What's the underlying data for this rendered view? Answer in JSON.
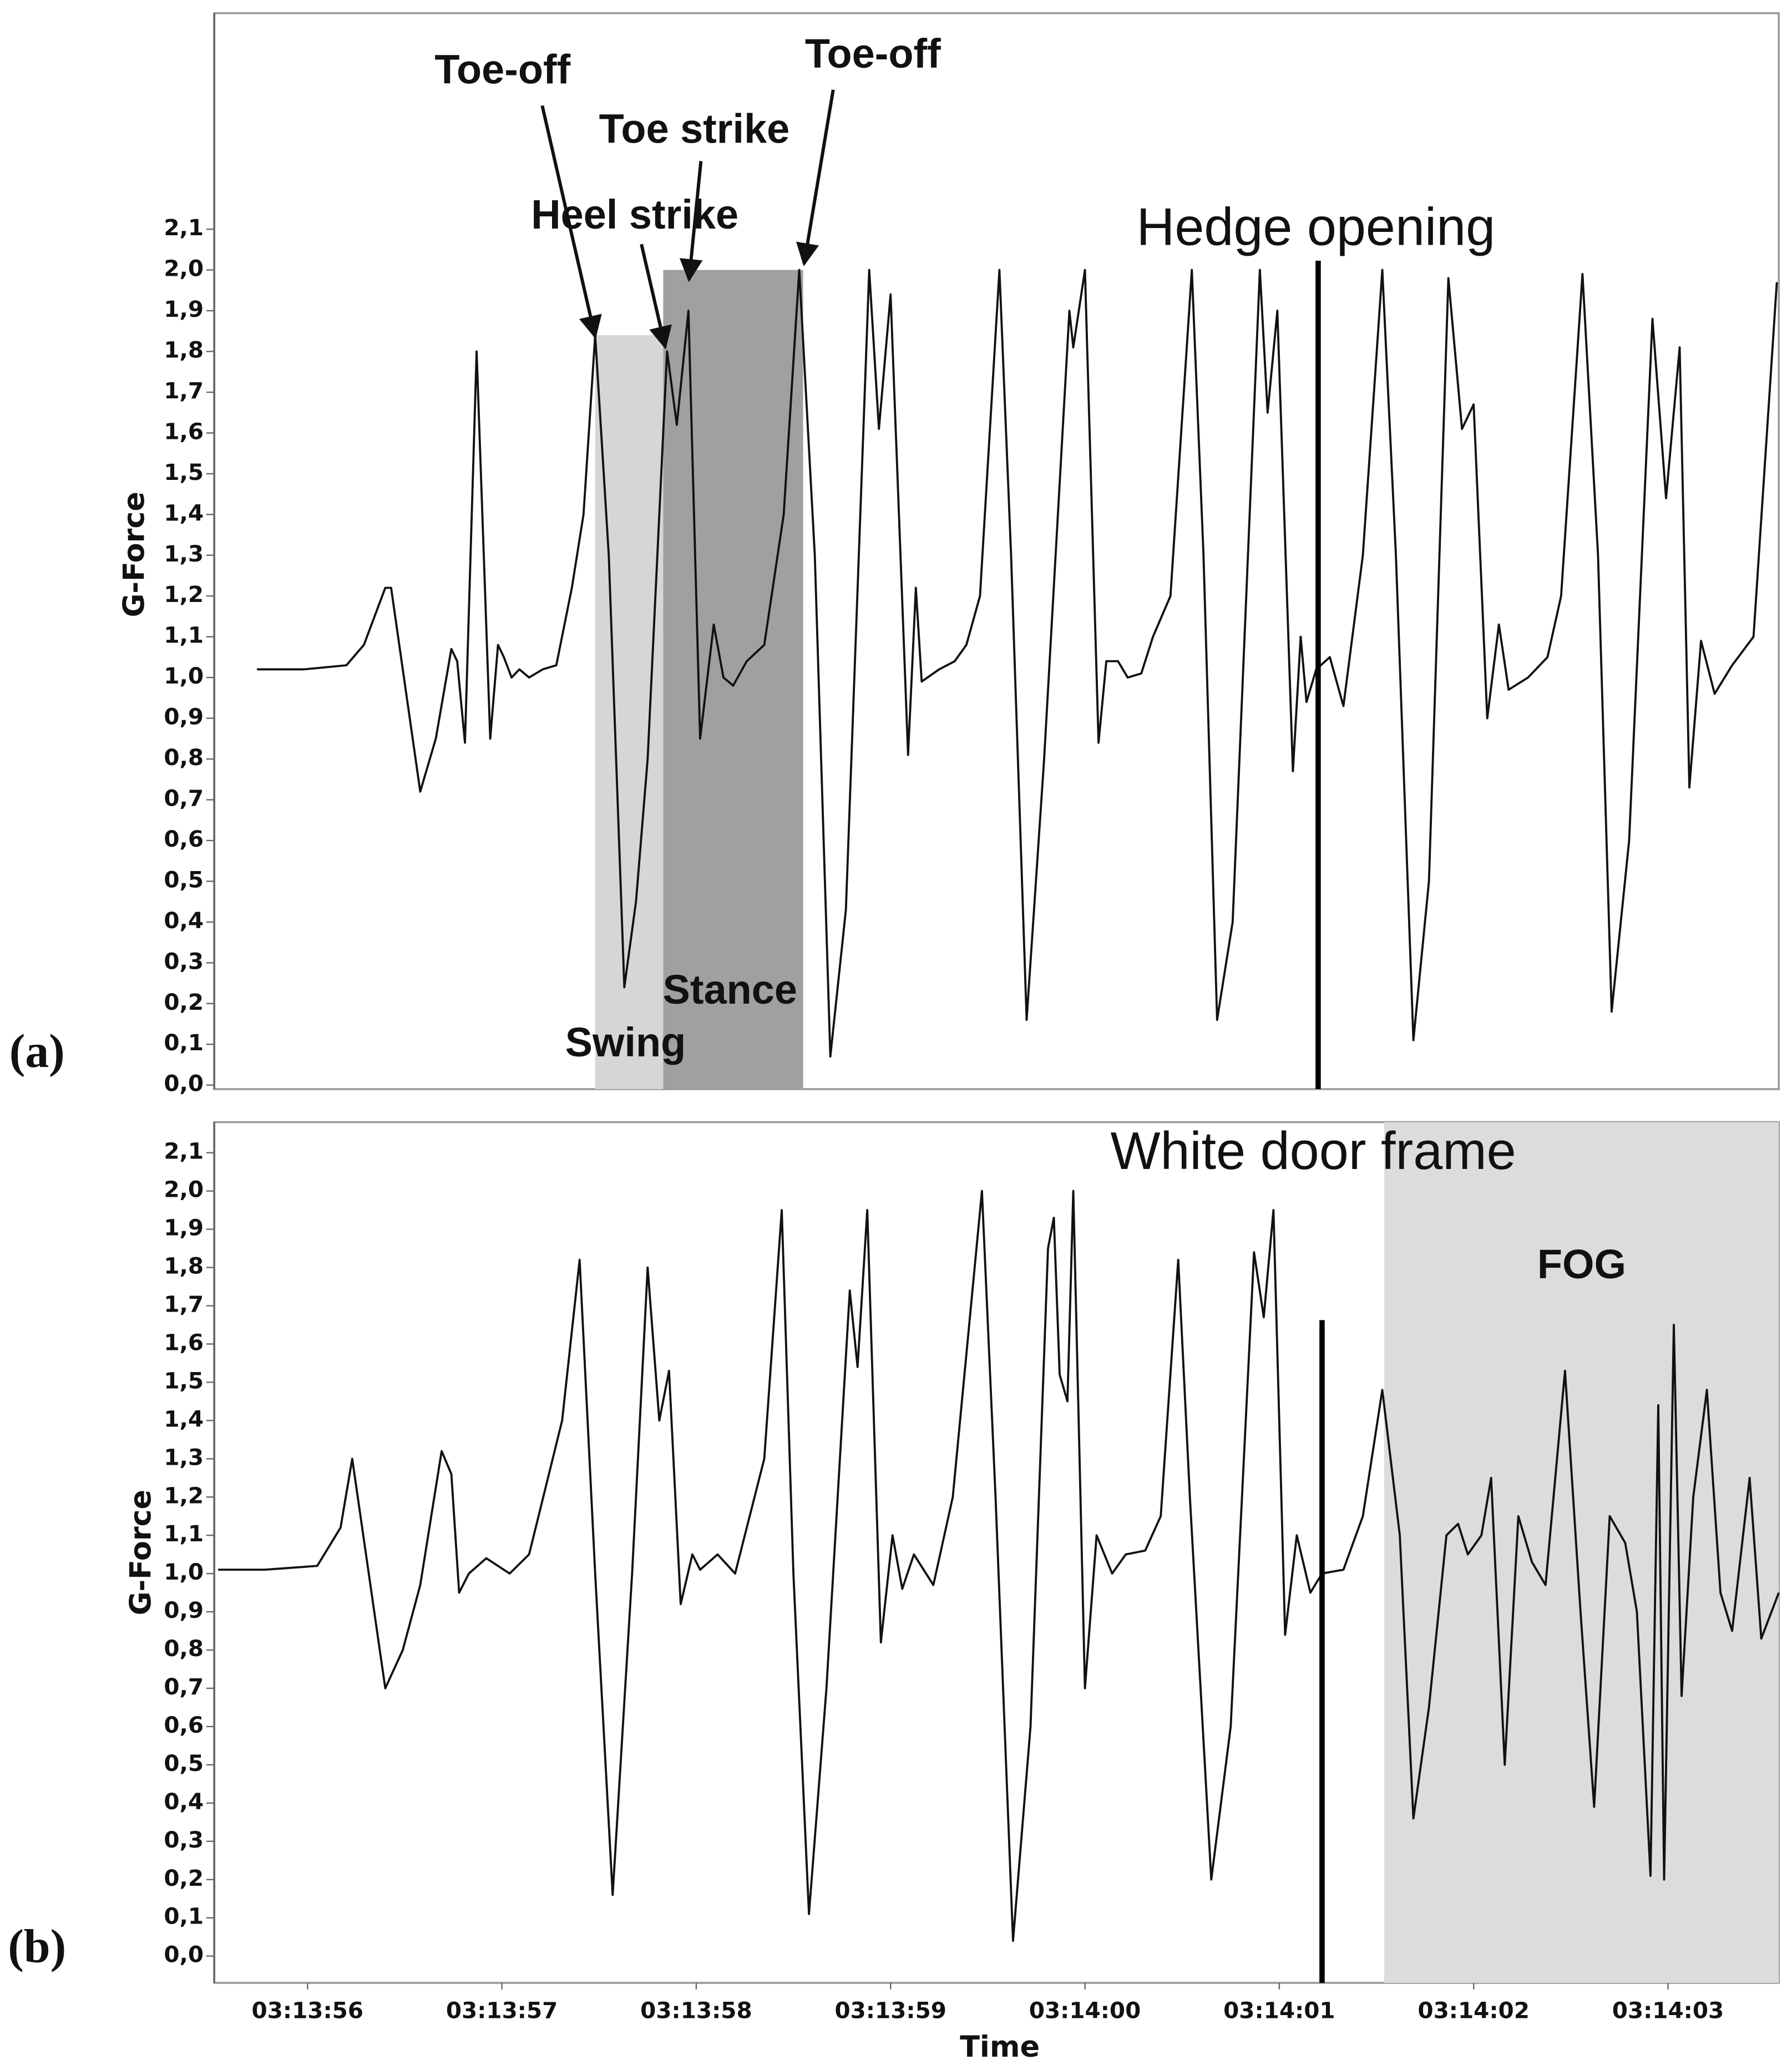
{
  "chart_data": [
    {
      "type": "line",
      "panel": "(a)",
      "ylabel": "G-Force",
      "xlim": [
        11635.52,
        11643.57
      ],
      "ylim": [
        -0.01,
        2.63
      ],
      "yticks": [
        {
          "value": 0,
          "label": "0,0"
        },
        {
          "value": 0.1,
          "label": "0,1"
        },
        {
          "value": 0.2,
          "label": "0,2"
        },
        {
          "value": 0.3,
          "label": "0,3"
        },
        {
          "value": 0.4,
          "label": "0,4"
        },
        {
          "value": 0.5,
          "label": "0,5"
        },
        {
          "value": 0.6,
          "label": "0,6"
        },
        {
          "value": 0.7,
          "label": "0,7"
        },
        {
          "value": 0.8,
          "label": "0,8"
        },
        {
          "value": 0.9,
          "label": "0,9"
        },
        {
          "value": 1,
          "label": "1,0"
        },
        {
          "value": 1.1,
          "label": "1,1"
        },
        {
          "value": 1.2,
          "label": "1,2"
        },
        {
          "value": 1.3,
          "label": "1,3"
        },
        {
          "value": 1.4,
          "label": "1,4"
        },
        {
          "value": 1.5,
          "label": "1,5"
        },
        {
          "value": 1.6,
          "label": "1,6"
        },
        {
          "value": 1.7,
          "label": "1,7"
        },
        {
          "value": 1.8,
          "label": "1,8"
        },
        {
          "value": 1.9,
          "label": "1,9"
        },
        {
          "value": 2,
          "label": "2,0"
        },
        {
          "value": 2.1,
          "label": "2,1"
        }
      ],
      "spans": [
        {
          "label": "Swing",
          "x": [
            11637.48,
            11637.83
          ],
          "ytop": 1.84,
          "color": "#d6d6d6"
        },
        {
          "label": "Stance",
          "x": [
            11637.83,
            11638.55
          ],
          "ytop": 2.0,
          "color": "#a0a0a0"
        }
      ],
      "vlines": [
        {
          "x": 11641.2,
          "label": "Hedge opening"
        }
      ],
      "annotations": [
        {
          "text": "Toe-off"
        },
        {
          "text": "Toe strike"
        },
        {
          "text": "Heel strike"
        },
        {
          "text": "Toe-off"
        }
      ],
      "series": [
        {
          "color": "#111111",
          "x": [
            11635.74,
            11635.98,
            11636.2,
            11636.29,
            11636.4,
            11636.43,
            11636.58,
            11636.66,
            11636.74,
            11636.77,
            11636.81,
            11636.87,
            11636.94,
            11636.98,
            11637.01,
            11637.05,
            11637.09,
            11637.14,
            11637.21,
            11637.28,
            11637.36,
            11637.42,
            11637.48,
            11637.55,
            11637.63,
            11637.69,
            11637.75,
            11637.85,
            11637.9,
            11637.96,
            11638.02,
            11638.09,
            11638.14,
            11638.19,
            11638.26,
            11638.35,
            11638.45,
            11638.53,
            11638.61,
            11638.69,
            11638.77,
            11638.89,
            11638.94,
            11639.0,
            11639.09,
            11639.13,
            11639.16,
            11639.25,
            11639.33,
            11639.39,
            11639.46,
            11639.56,
            11639.62,
            11639.7,
            11639.79,
            11639.92,
            11639.94,
            11640.0,
            11640.07,
            11640.11,
            11640.17,
            11640.22,
            11640.29,
            11640.35,
            11640.44,
            11640.55,
            11640.61,
            11640.68,
            11640.76,
            11640.9,
            11640.94,
            11640.99,
            11641.07,
            11641.11,
            11641.14,
            11641.19,
            11641.26,
            11641.33,
            11641.43,
            11641.53,
            11641.6,
            11641.69,
            11641.77,
            11641.87,
            11641.94,
            11642.0,
            11642.07,
            11642.13,
            11642.18,
            11642.28,
            11642.38,
            11642.45,
            11642.56,
            11642.64,
            11642.71,
            11642.8,
            11642.92,
            11642.99,
            11643.06,
            11643.11,
            11643.17,
            11643.24,
            11643.33,
            11643.44,
            11643.56
          ],
          "values": [
            1.02,
            1.02,
            1.03,
            1.08,
            1.22,
            1.22,
            0.72,
            0.85,
            1.07,
            1.04,
            0.84,
            1.8,
            0.85,
            1.08,
            1.05,
            1.0,
            1.02,
            1.0,
            1.02,
            1.03,
            1.22,
            1.4,
            1.84,
            1.3,
            0.24,
            0.45,
            0.8,
            1.8,
            1.62,
            1.9,
            0.85,
            1.13,
            1.0,
            0.98,
            1.04,
            1.08,
            1.4,
            2.0,
            1.3,
            0.07,
            0.43,
            2.0,
            1.61,
            1.94,
            0.81,
            1.22,
            0.99,
            1.02,
            1.04,
            1.08,
            1.2,
            2.0,
            1.3,
            0.16,
            0.8,
            1.9,
            1.81,
            2.0,
            0.84,
            1.04,
            1.04,
            1.0,
            1.01,
            1.1,
            1.2,
            2.0,
            1.3,
            0.16,
            0.4,
            2.0,
            1.65,
            1.9,
            0.77,
            1.1,
            0.94,
            1.02,
            1.05,
            0.93,
            1.3,
            2.0,
            1.3,
            0.11,
            0.5,
            1.98,
            1.61,
            1.67,
            0.9,
            1.13,
            0.97,
            1.0,
            1.05,
            1.2,
            1.99,
            1.3,
            0.18,
            0.6,
            1.88,
            1.44,
            1.81,
            0.73,
            1.09,
            0.96,
            1.03,
            1.1,
            1.97
          ]
        }
      ]
    },
    {
      "type": "line",
      "panel": "(b)",
      "ylabel": "G-Force",
      "xlabel": "Time",
      "xlim": [
        11635.52,
        11643.57
      ],
      "ylim": [
        -0.07,
        2.18
      ],
      "xticks": [
        {
          "value": 11636,
          "label": "03:13:56"
        },
        {
          "value": 11637,
          "label": "03:13:57"
        },
        {
          "value": 11638,
          "label": "03:13:58"
        },
        {
          "value": 11639,
          "label": "03:13:59"
        },
        {
          "value": 11640,
          "label": "03:14:00"
        },
        {
          "value": 11641,
          "label": "03:14:01"
        },
        {
          "value": 11642,
          "label": "03:14:02"
        },
        {
          "value": 11643,
          "label": "03:14:03"
        }
      ],
      "yticks": [
        {
          "value": 0,
          "label": "0,0"
        },
        {
          "value": 0.1,
          "label": "0,1"
        },
        {
          "value": 0.2,
          "label": "0,2"
        },
        {
          "value": 0.3,
          "label": "0,3"
        },
        {
          "value": 0.4,
          "label": "0,4"
        },
        {
          "value": 0.5,
          "label": "0,5"
        },
        {
          "value": 0.6,
          "label": "0,6"
        },
        {
          "value": 0.7,
          "label": "0,7"
        },
        {
          "value": 0.8,
          "label": "0,8"
        },
        {
          "value": 0.9,
          "label": "0,9"
        },
        {
          "value": 1,
          "label": "1,0"
        },
        {
          "value": 1.1,
          "label": "1,1"
        },
        {
          "value": 1.2,
          "label": "1,2"
        },
        {
          "value": 1.3,
          "label": "1,3"
        },
        {
          "value": 1.4,
          "label": "1,4"
        },
        {
          "value": 1.5,
          "label": "1,5"
        },
        {
          "value": 1.6,
          "label": "1,6"
        },
        {
          "value": 1.7,
          "label": "1,7"
        },
        {
          "value": 1.8,
          "label": "1,8"
        },
        {
          "value": 1.9,
          "label": "1,9"
        },
        {
          "value": 2,
          "label": "2,0"
        },
        {
          "value": 2.1,
          "label": "2,1"
        }
      ],
      "spans": [
        {
          "label": "FOG",
          "x": [
            11641.54,
            11643.57
          ],
          "ytop": 2.18,
          "color": "#dcdcdc"
        }
      ],
      "vlines": [
        {
          "x": 11641.22,
          "label": "White door frame"
        }
      ],
      "series": [
        {
          "color": "#111111",
          "x": [
            11635.54,
            11635.78,
            11636.05,
            11636.17,
            11636.23,
            11636.4,
            11636.49,
            11636.58,
            11636.69,
            11636.74,
            11636.78,
            11636.83,
            11636.92,
            11637.04,
            11637.14,
            11637.31,
            11637.4,
            11637.48,
            11637.57,
            11637.67,
            11637.75,
            11637.81,
            11637.86,
            11637.92,
            11637.98,
            11638.02,
            11638.11,
            11638.2,
            11638.35,
            11638.44,
            11638.5,
            11638.58,
            11638.67,
            11638.79,
            11638.83,
            11638.88,
            11638.95,
            11639.01,
            11639.06,
            11639.12,
            11639.22,
            11639.32,
            11639.47,
            11639.54,
            11639.63,
            11639.72,
            11639.81,
            11639.84,
            11639.87,
            11639.91,
            11639.94,
            11640.0,
            11640.06,
            11640.14,
            11640.21,
            11640.31,
            11640.39,
            11640.48,
            11640.54,
            11640.65,
            11640.75,
            11640.87,
            11640.92,
            11640.97,
            11641.03,
            11641.09,
            11641.16,
            11641.22,
            11641.33,
            11641.43,
            11641.53,
            11641.62,
            11641.69,
            11641.77,
            11641.86,
            11641.92,
            11641.97,
            11642.04,
            11642.09,
            11642.16,
            11642.23,
            11642.3,
            11642.37,
            11642.47,
            11642.55,
            11642.62,
            11642.7,
            11642.78,
            11642.84,
            11642.91,
            11642.95,
            11642.98,
            11643.03,
            11643.07,
            11643.13,
            11643.2,
            11643.27,
            11643.33,
            11643.42,
            11643.48,
            11643.57
          ],
          "values": [
            1.01,
            1.01,
            1.02,
            1.12,
            1.3,
            0.7,
            0.8,
            0.97,
            1.32,
            1.26,
            0.95,
            1.0,
            1.04,
            1.0,
            1.05,
            1.4,
            1.82,
            1.0,
            0.16,
            1.0,
            1.8,
            1.4,
            1.53,
            0.92,
            1.05,
            1.01,
            1.05,
            1.0,
            1.3,
            1.95,
            1.0,
            0.11,
            0.7,
            1.74,
            1.54,
            1.95,
            0.82,
            1.1,
            0.96,
            1.05,
            0.97,
            1.2,
            2.0,
            1.2,
            0.04,
            0.6,
            1.85,
            1.93,
            1.52,
            1.45,
            2.0,
            0.7,
            1.1,
            1.0,
            1.05,
            1.06,
            1.15,
            1.82,
            1.2,
            0.2,
            0.6,
            1.84,
            1.67,
            1.95,
            0.84,
            1.1,
            0.95,
            1.0,
            1.01,
            1.15,
            1.48,
            1.1,
            0.36,
            0.65,
            1.1,
            1.13,
            1.05,
            1.1,
            1.25,
            0.5,
            1.15,
            1.03,
            0.97,
            1.53,
            0.9,
            0.39,
            1.15,
            1.08,
            0.9,
            0.21,
            1.44,
            0.2,
            1.65,
            0.68,
            1.2,
            1.48,
            0.95,
            0.85,
            1.25,
            0.83,
            0.95
          ]
        }
      ]
    }
  ]
}
